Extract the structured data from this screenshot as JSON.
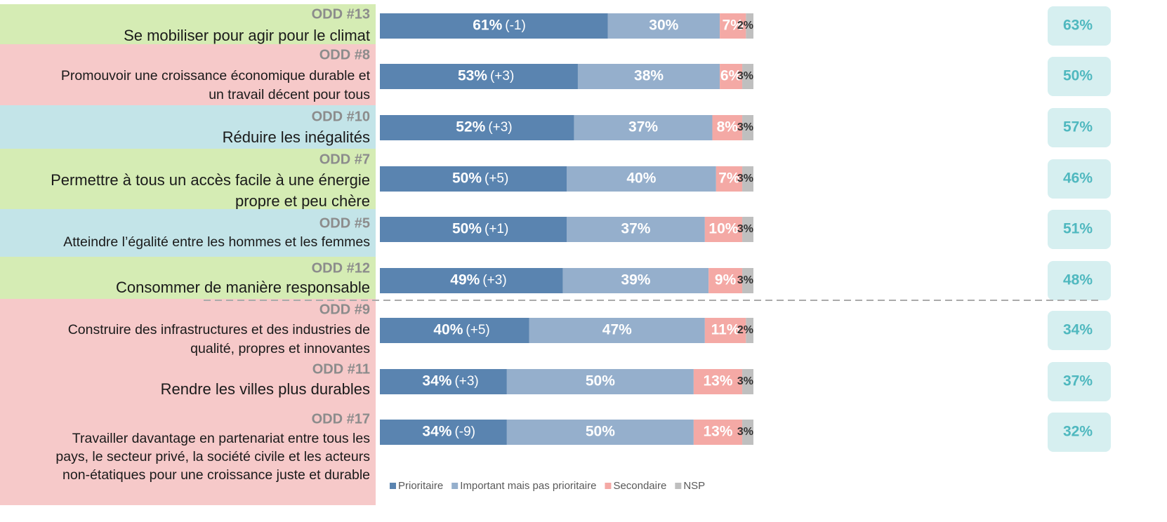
{
  "chart_data": {
    "type": "bar",
    "orientation": "horizontal",
    "stacked": true,
    "xlim": [
      0,
      100
    ],
    "rows": [
      {
        "odd": "ODD #13",
        "lines": [
          "Se mobiliser pour agir pour le climat"
        ],
        "color": "#d5ecb4",
        "change": "(-1)",
        "badge": "63%"
      },
      {
        "odd": "ODD #8",
        "lines": [
          "Promouvoir une croissance économique durable et",
          "un travail décent pour tous"
        ],
        "color": "#f6c9c9",
        "change": "(+3)",
        "badge": "50%"
      },
      {
        "odd": "ODD #10",
        "lines": [
          "Réduire les inégalités"
        ],
        "color": "#c3e4e8",
        "change": "(+3)",
        "badge": "57%"
      },
      {
        "odd": "ODD #7",
        "lines": [
          "Permettre à tous un accès facile à une énergie",
          "propre et peu chère"
        ],
        "color": "#d5ecb4",
        "change": "(+5)",
        "badge": "46%"
      },
      {
        "odd": "ODD #5",
        "lines": [
          "Atteindre l’égalité entre les hommes et les femmes"
        ],
        "color": "#c3e4e8",
        "change": "(+1)",
        "badge": "51%"
      },
      {
        "odd": "ODD #12",
        "lines": [
          "Consommer de manière responsable"
        ],
        "color": "#d5ecb4",
        "change": "(+3)",
        "badge": "48%"
      },
      {
        "odd": "ODD #9",
        "lines": [
          "Construire des infrastructures et des industries de",
          "qualité, propres et innovantes"
        ],
        "color": "#f6c9c9",
        "change": "(+5)",
        "badge": "34%"
      },
      {
        "odd": "ODD #11",
        "lines": [
          "Rendre les villes plus durables"
        ],
        "color": "#f6c9c9",
        "change": "(+3)",
        "badge": "37%"
      },
      {
        "odd": "ODD #17",
        "lines": [
          "Travailler davantage en partenariat entre tous les",
          "pays, le secteur privé, la société civile et les acteurs",
          "non-étatiques pour une croissance juste et durable"
        ],
        "color": "#f6c9c9",
        "change": "(-9)",
        "badge": "32%"
      }
    ],
    "series": [
      {
        "name": "Prioritaire",
        "color": "#5a84b0",
        "values": [
          61,
          53,
          52,
          50,
          50,
          49,
          40,
          34,
          34
        ],
        "value_labels": [
          "61%",
          "53%",
          "52%",
          "50%",
          "50%",
          "49%",
          "40%",
          "34%",
          "34%"
        ]
      },
      {
        "name": "Important mais pas prioritaire",
        "color": "#95afcc",
        "values": [
          30,
          38,
          37,
          40,
          37,
          39,
          47,
          50,
          50
        ],
        "value_labels": [
          "30%",
          "38%",
          "37%",
          "40%",
          "37%",
          "39%",
          "47%",
          "50%",
          "50%"
        ]
      },
      {
        "name": "Secondaire",
        "color": "#f4a9a5",
        "values": [
          7,
          6,
          8,
          7,
          10,
          9,
          11,
          13,
          13
        ],
        "value_labels": [
          "7%",
          "6%",
          "8%",
          "7%",
          "10%",
          "9%",
          "11%",
          "13%",
          "13%"
        ]
      },
      {
        "name": "NSP",
        "color": "#bfbfbf",
        "values": [
          2,
          3,
          3,
          3,
          3,
          3,
          2,
          3,
          3
        ],
        "value_labels": [
          "2%",
          "3%",
          "3%",
          "3%",
          "3%",
          "3%",
          "2%",
          "3%",
          "3%"
        ]
      }
    ]
  }
}
